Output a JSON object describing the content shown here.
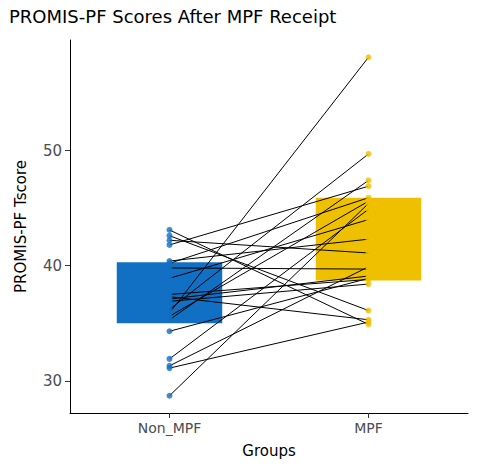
{
  "chart_data": {
    "type": "bar",
    "title": "PROMIS-PF Scores After MPF Receipt",
    "x_label": "Groups",
    "y_label": "PROMIS-PF Tscore",
    "categories": [
      "Non_MPF",
      "MPF"
    ],
    "colors": [
      "#1170c4",
      "#efc000"
    ],
    "low": [
      35.0,
      38.7
    ],
    "high": [
      40.3,
      45.9
    ],
    "paired_values": [
      [
        28.7,
        45.4
      ],
      [
        31.1,
        35.1
      ],
      [
        31.3,
        39.9
      ],
      [
        31.9,
        44.9
      ],
      [
        34.3,
        38.9
      ],
      [
        35.3,
        47.4
      ],
      [
        35.6,
        45.6
      ],
      [
        35.9,
        58.1
      ],
      [
        36.2,
        49.7
      ],
      [
        36.9,
        38.4
      ],
      [
        37.1,
        39.1
      ],
      [
        37.3,
        35.3
      ],
      [
        37.5,
        38.8
      ],
      [
        38.9,
        44.0
      ],
      [
        39.8,
        39.7
      ],
      [
        40.4,
        42.3
      ],
      [
        41.8,
        46.9
      ],
      [
        42.2,
        41.1
      ],
      [
        42.6,
        36.1
      ],
      [
        43.1,
        34.9
      ],
      [
        40.2,
        45.9
      ]
    ],
    "ylim": [
      27.2,
      59.6
    ],
    "yticks": [
      30,
      40,
      50
    ],
    "grid": false
  }
}
